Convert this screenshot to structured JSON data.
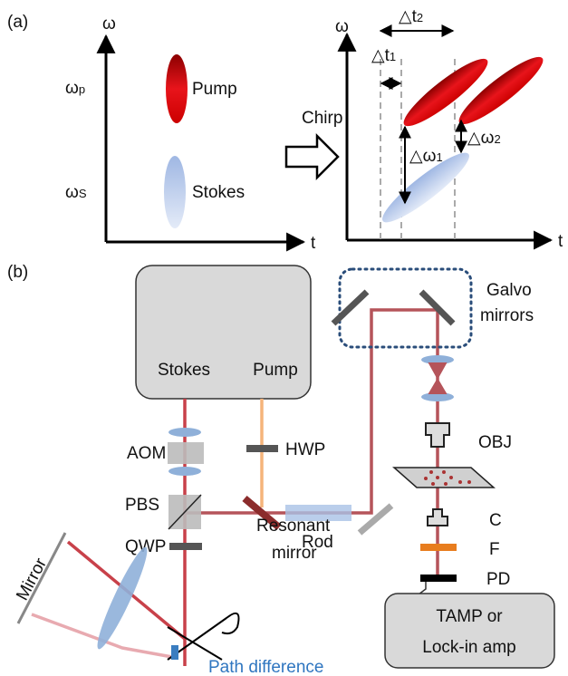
{
  "panel_a": {
    "label": "(a)",
    "left_plot": {
      "y_axis": "ω",
      "x_axis": "t",
      "levels": [
        {
          "symbol": "ω",
          "sub": "p"
        },
        {
          "symbol": "ω",
          "sub": "S"
        }
      ],
      "pulses": [
        "Pump",
        "Stokes"
      ]
    },
    "transform": "Chirp",
    "right_plot": {
      "y_axis": "ω",
      "x_axis": "t",
      "delays": [
        {
          "symbol": "△t",
          "sub": "1"
        },
        {
          "symbol": "△t",
          "sub": "2"
        }
      ],
      "shifts": [
        {
          "symbol": "△ω",
          "sub": "1"
        },
        {
          "symbol": "△ω",
          "sub": "2"
        }
      ]
    }
  },
  "panel_b": {
    "label": "(b)",
    "laser": [
      "Stokes",
      "Pump"
    ],
    "galvo": [
      "Galvo",
      "mirrors"
    ],
    "components": {
      "aom": "AOM",
      "hwp": "HWP",
      "pbs": "PBS",
      "qwp": "QWP",
      "rod": "Rod",
      "mirror": "Mirror",
      "objective": "OBJ",
      "condenser": "C",
      "filter": "F",
      "detector": "PD"
    },
    "resonant": [
      "Resonant",
      "mirror"
    ],
    "path_difference": "Path difference",
    "amplifier": [
      "TAMP or",
      "Lock-in amp"
    ]
  }
}
